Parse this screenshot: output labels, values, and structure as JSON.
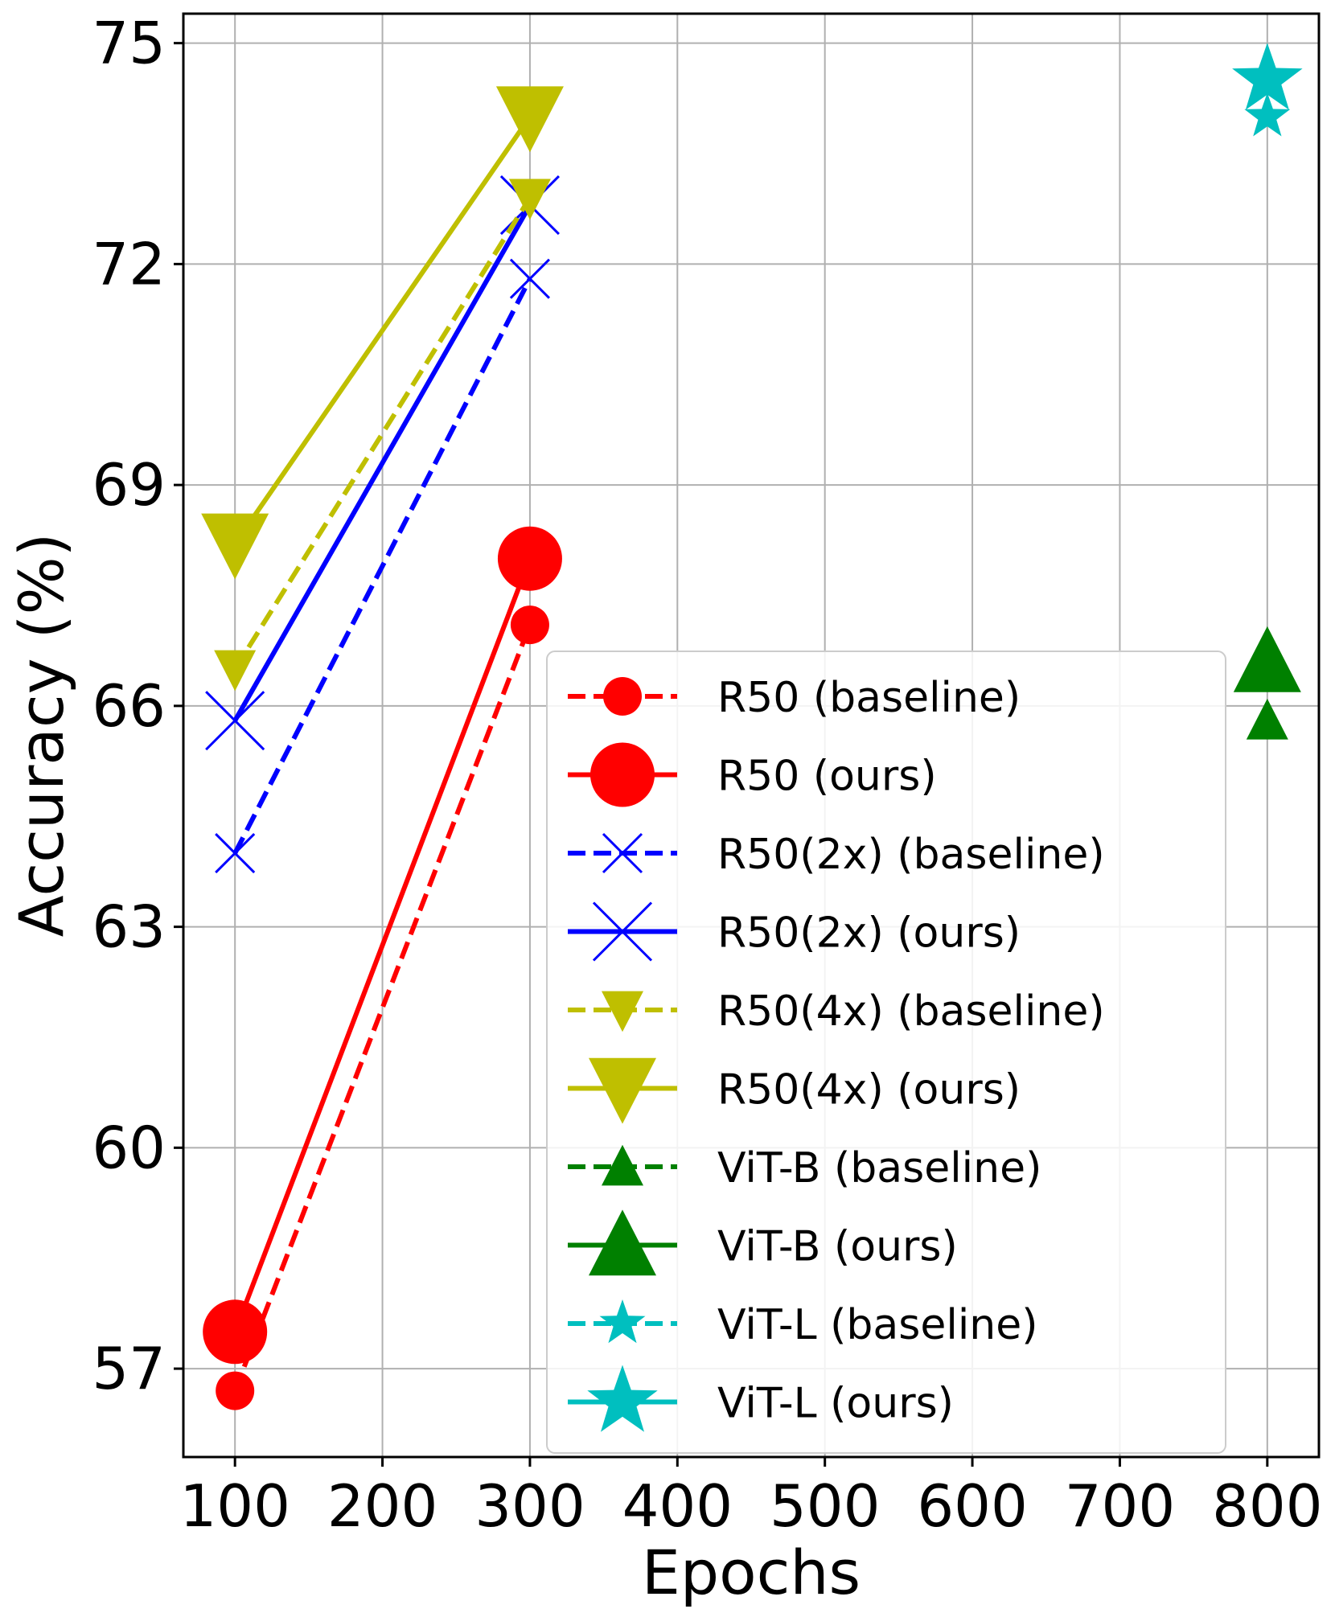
{
  "chart_data": {
    "type": "line",
    "title": "",
    "xlabel": "Epochs",
    "ylabel": "Accuracy (%)",
    "xlim": [
      65,
      835
    ],
    "ylim": [
      55.8,
      75.4
    ],
    "xticks": [
      100,
      200,
      300,
      400,
      500,
      600,
      700,
      800
    ],
    "yticks": [
      57,
      60,
      63,
      66,
      69,
      72,
      75
    ],
    "grid": true,
    "legend_position": "lower-right",
    "series": [
      {
        "name": "R50 (baseline)",
        "color": "#ff0000",
        "style": "dashed",
        "marker": "circle",
        "size": "small",
        "x": [
          100,
          300
        ],
        "y": [
          56.7,
          67.1
        ]
      },
      {
        "name": "R50 (ours)",
        "color": "#ff0000",
        "style": "solid",
        "marker": "circle",
        "size": "large",
        "x": [
          100,
          300
        ],
        "y": [
          57.5,
          68.0
        ]
      },
      {
        "name": "R50(2x) (baseline)",
        "color": "#0000ff",
        "style": "dashed",
        "marker": "x",
        "size": "small",
        "x": [
          100,
          300
        ],
        "y": [
          64.0,
          71.8
        ]
      },
      {
        "name": "R50(2x) (ours)",
        "color": "#0000ff",
        "style": "solid",
        "marker": "x",
        "size": "large",
        "x": [
          100,
          300
        ],
        "y": [
          65.8,
          72.8
        ]
      },
      {
        "name": "R50(4x) (baseline)",
        "color": "#bfbf00",
        "style": "dashed",
        "marker": "triangle-down",
        "size": "small",
        "x": [
          100,
          300
        ],
        "y": [
          66.5,
          72.9
        ]
      },
      {
        "name": "R50(4x) (ours)",
        "color": "#bfbf00",
        "style": "solid",
        "marker": "triangle-down",
        "size": "large",
        "x": [
          100,
          300
        ],
        "y": [
          68.2,
          74.0
        ]
      },
      {
        "name": "ViT-B (baseline)",
        "color": "#008000",
        "style": "dashed",
        "marker": "triangle-up",
        "size": "small",
        "x": [
          800
        ],
        "y": [
          65.8
        ]
      },
      {
        "name": "ViT-B (ours)",
        "color": "#008000",
        "style": "solid",
        "marker": "triangle-up",
        "size": "large",
        "x": [
          800
        ],
        "y": [
          66.6
        ]
      },
      {
        "name": "ViT-L (baseline)",
        "color": "#00bfbf",
        "style": "dashed",
        "marker": "star",
        "size": "small",
        "x": [
          800
        ],
        "y": [
          74.0
        ]
      },
      {
        "name": "ViT-L (ours)",
        "color": "#00bfbf",
        "style": "solid",
        "marker": "star",
        "size": "large",
        "x": [
          800
        ],
        "y": [
          74.5
        ]
      }
    ]
  }
}
